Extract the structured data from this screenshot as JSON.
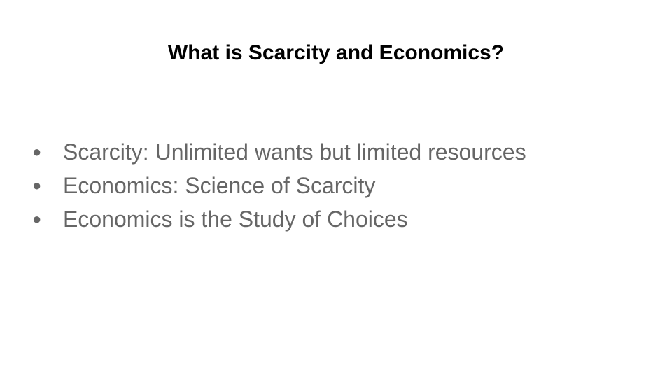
{
  "slide": {
    "title": "What is Scarcity and Economics?",
    "bullet_glyph": "●",
    "bullets": [
      "Scarcity: Unlimited wants but limited resources",
      "Economics: Science of Scarcity",
      "Economics is the Study of Choices"
    ]
  }
}
